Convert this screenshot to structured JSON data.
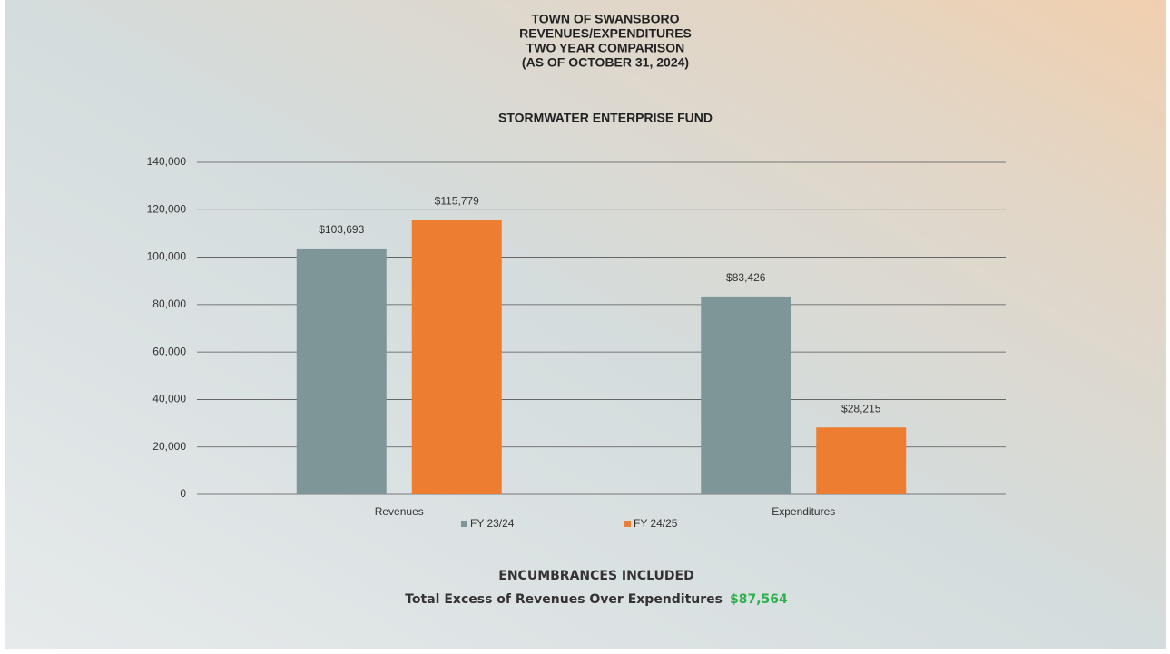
{
  "chart_data": {
    "type": "bar",
    "title": [
      "TOWN OF SWANSBORO",
      "REVENUES/EXPENDITURES",
      "TWO YEAR COMPARISON",
      "(AS OF OCTOBER 31, 2024)"
    ],
    "subtitle": "STORMWATER ENTERPRISE FUND",
    "categories": [
      "Revenues",
      "Expenditures"
    ],
    "series": [
      {
        "name": "FY 23/24",
        "color": "#7f9699",
        "values": [
          103693,
          83426
        ],
        "value_labels": [
          "$103,693",
          "$83,426"
        ]
      },
      {
        "name": "FY 24/25",
        "color": "#ed7d31",
        "values": [
          115779,
          28215
        ],
        "value_labels": [
          "$115,779",
          "$28,215"
        ]
      }
    ],
    "ylim": [
      0,
      140000
    ],
    "yticks": [
      0,
      {
        "value": 20000,
        "label": "20,000"
      },
      {
        "value": 40000,
        "label": "40,000"
      },
      {
        "value": 60000,
        "label": "60,000"
      },
      {
        "value": 80000,
        "label": "80,000"
      },
      {
        "value": 100000,
        "label": "100,000"
      },
      {
        "value": 120000,
        "label": "120,000"
      },
      {
        "value": 140000,
        "label": "140,000"
      }
    ],
    "grid": true,
    "legend": "bottom",
    "annotations": [
      "ENCUMBRANCES INCLUDED",
      "Total Excess of Revenues Over Expenditures",
      "$87,564"
    ],
    "annotation_color": "#2eb04f"
  }
}
